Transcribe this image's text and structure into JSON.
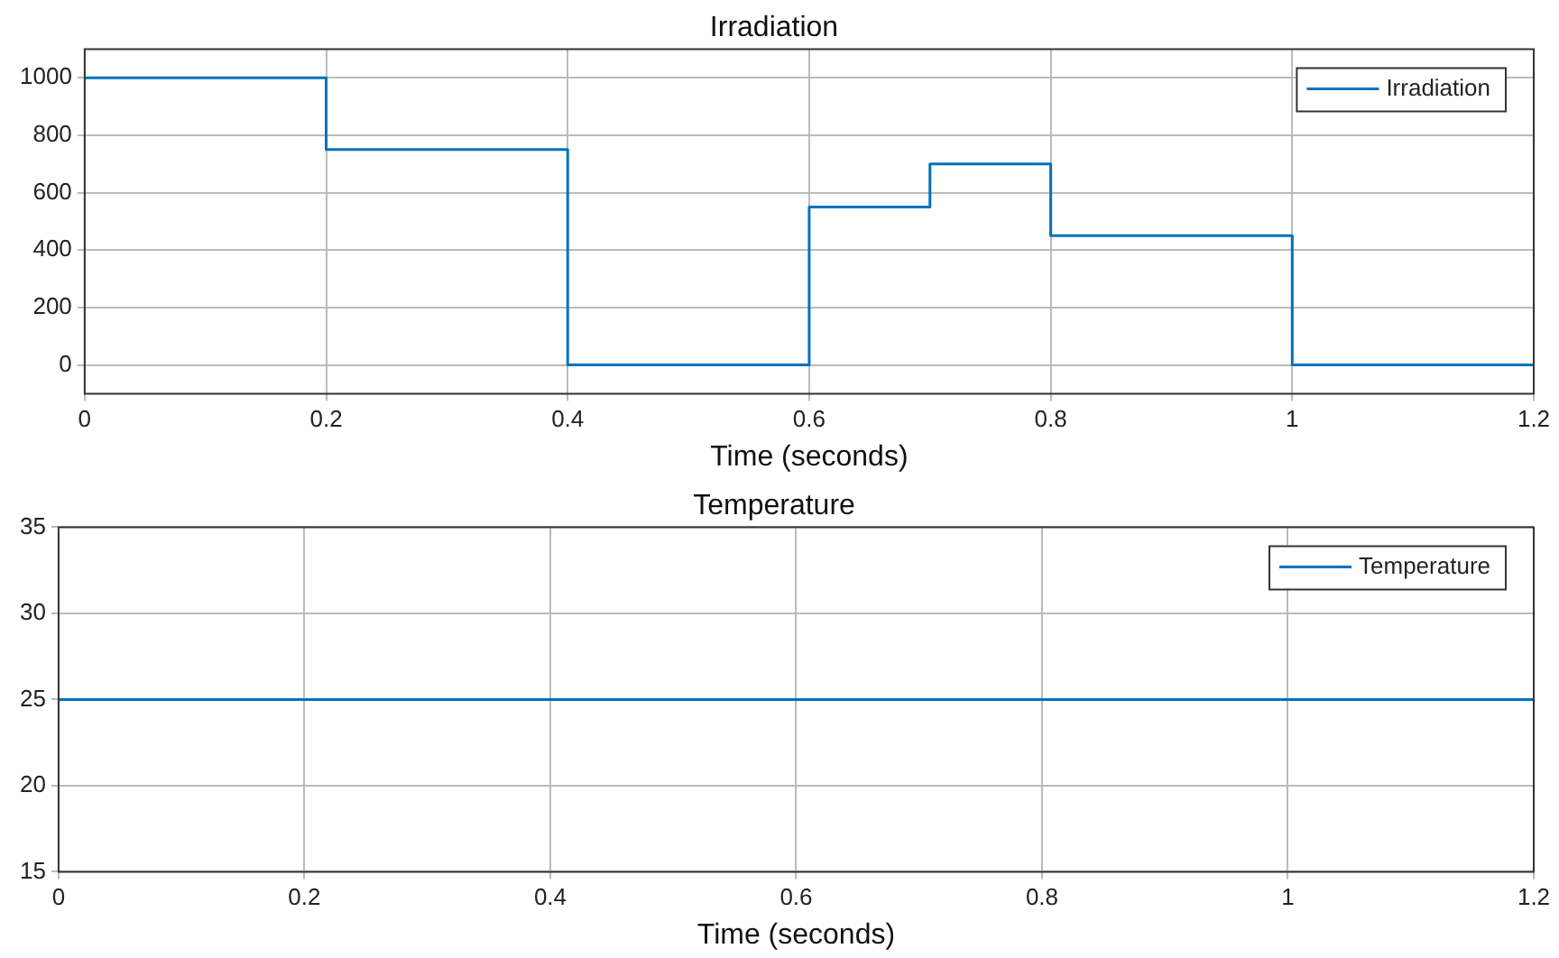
{
  "chart_data": [
    {
      "type": "step",
      "title": "Irradiation",
      "xlabel": "Time (seconds)",
      "x": [
        0,
        0.2,
        0.4,
        0.6,
        0.7,
        0.8,
        1.0,
        1.2
      ],
      "series": [
        {
          "name": "Irradiation",
          "color": "#0072bd",
          "values": [
            1000,
            750,
            0,
            550,
            700,
            450,
            0,
            0
          ]
        }
      ],
      "xlim": [
        0,
        1.2
      ],
      "xticks": [
        0,
        0.2,
        0.4,
        0.6,
        0.8,
        1,
        1.2
      ],
      "ylim": [
        -100,
        1100
      ],
      "yticks": [
        0,
        200,
        400,
        600,
        800,
        1000
      ],
      "grid": true,
      "legend": "top right"
    },
    {
      "type": "step",
      "title": "Temperature",
      "xlabel": "Time (seconds)",
      "x": [
        0,
        1.2
      ],
      "series": [
        {
          "name": "Temperature",
          "color": "#0072bd",
          "values": [
            25,
            25
          ]
        }
      ],
      "xlim": [
        0,
        1.2
      ],
      "xticks": [
        0,
        0.2,
        0.4,
        0.6,
        0.8,
        1,
        1.2
      ],
      "ylim": [
        15,
        35
      ],
      "yticks": [
        15,
        20,
        25,
        30,
        35
      ],
      "grid": true,
      "legend": "top right"
    }
  ]
}
